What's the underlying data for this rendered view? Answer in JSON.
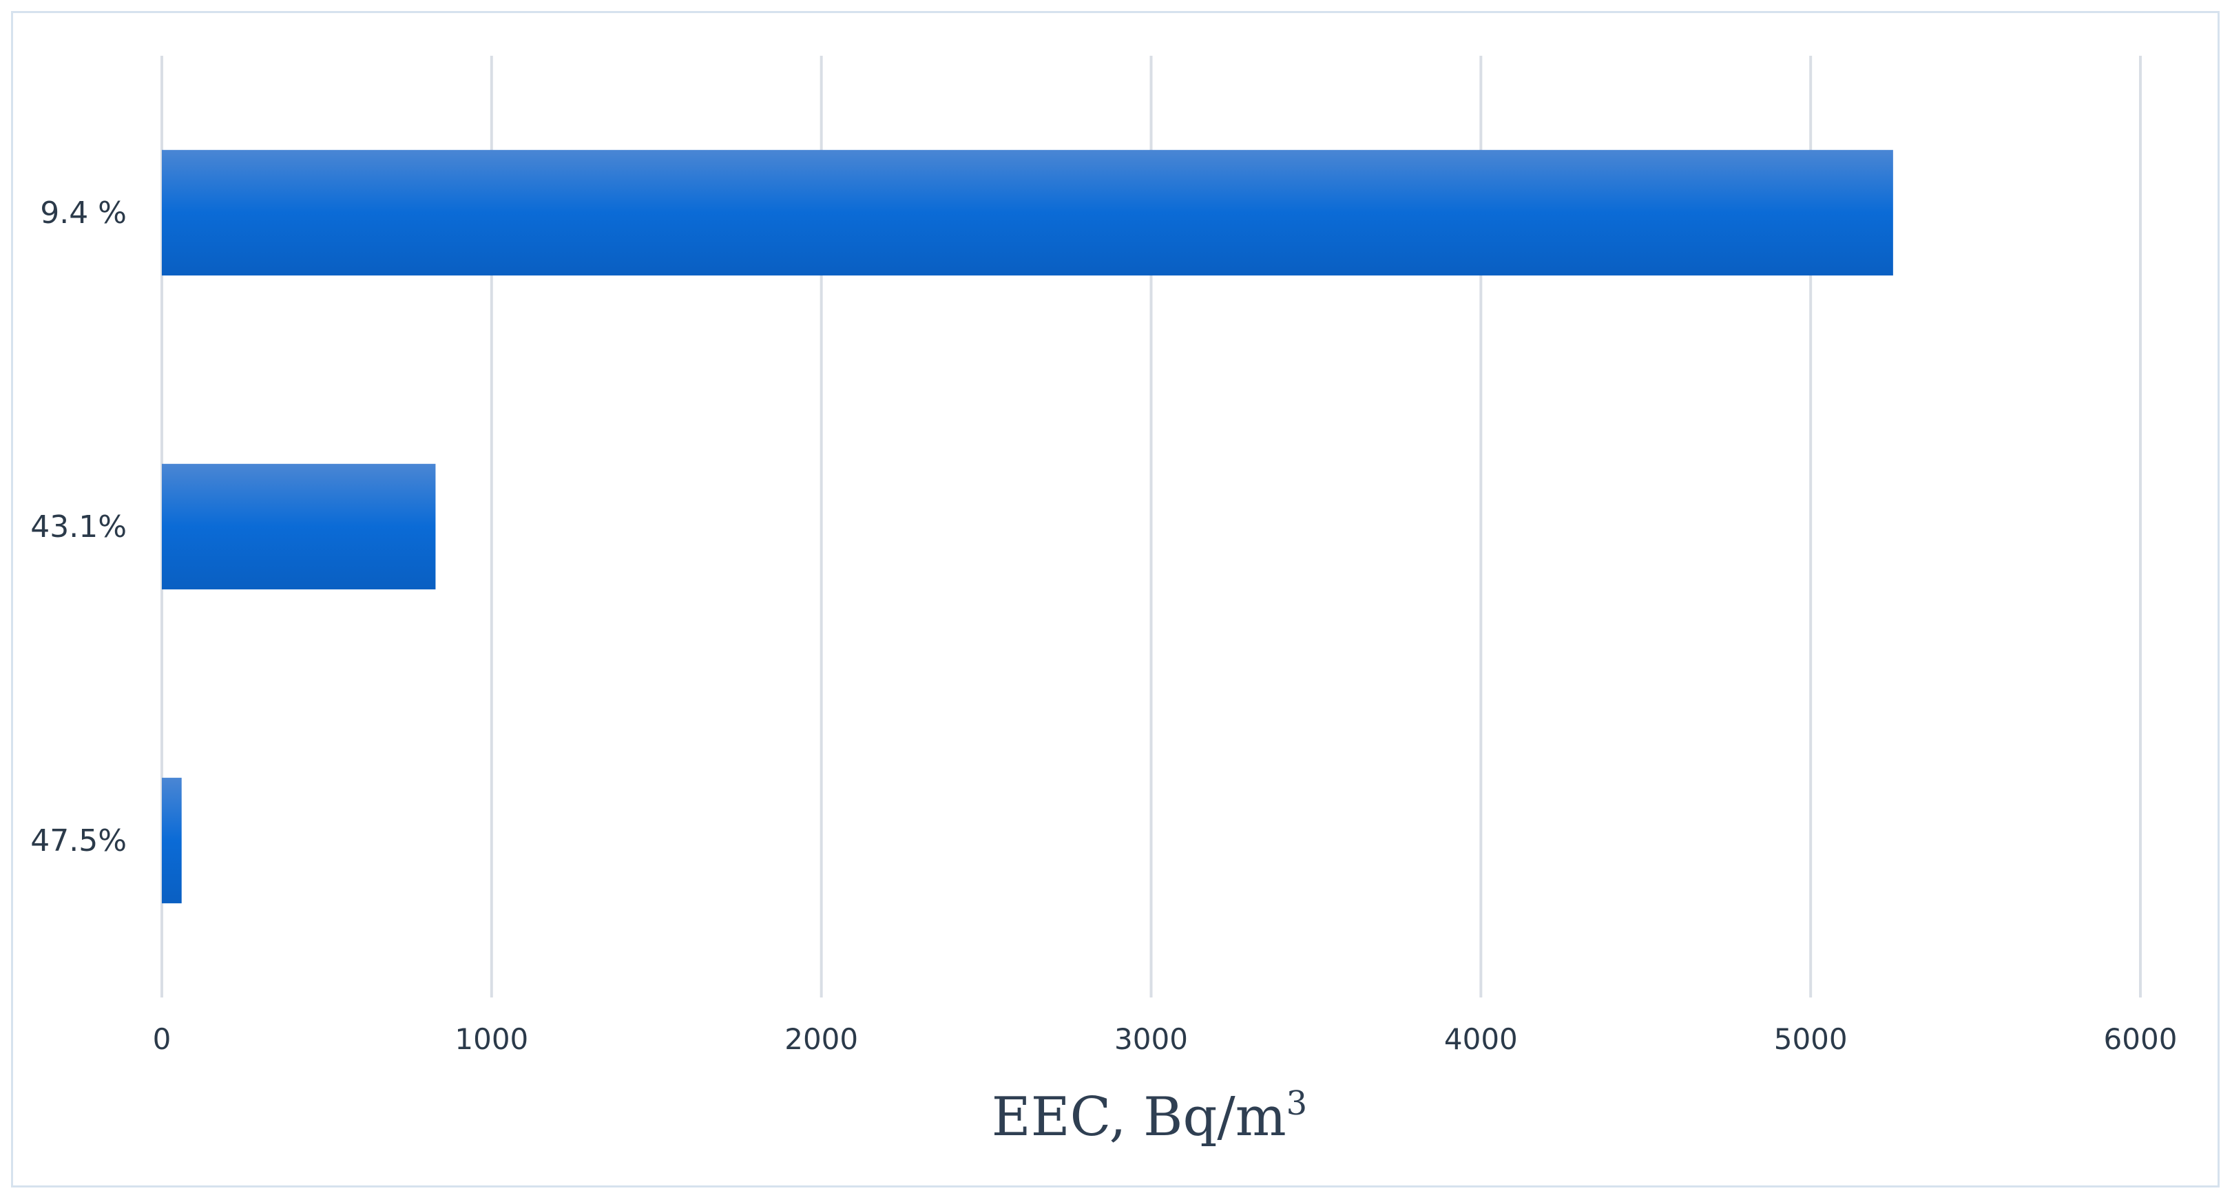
{
  "chart_data": {
    "type": "bar",
    "orientation": "horizontal",
    "categories": [
      "9.4 %",
      "43.1%",
      "47.5%"
    ],
    "values": [
      5250,
      830,
      60
    ],
    "title": "",
    "xlabel": "EEC, Bq/m",
    "xlabel_superscript": "3",
    "ylabel": "",
    "xlim": [
      0,
      6000
    ],
    "xticks": [
      "0",
      "1000",
      "2000",
      "3000",
      "4000",
      "5000",
      "6000"
    ],
    "grid": true,
    "legend": "none",
    "bar_color_top": "#4a86d4",
    "bar_color_mid": "#0b6bd6",
    "bar_color_bottom": "#0a5fc2"
  }
}
